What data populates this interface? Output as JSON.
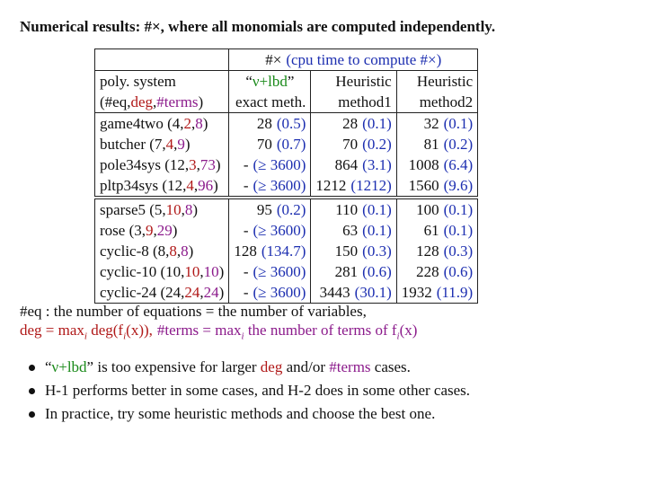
{
  "title": "Numerical results: #×, where all monomials are computed independently.",
  "table": {
    "header_top": [
      "#×",
      "(cpu time to compute #×)"
    ],
    "header": [
      [
        "poly. system",
        [
          "“",
          "ν+lbd",
          "”"
        ],
        "Heuristic",
        "Heuristic"
      ],
      [
        [
          "(#eq,",
          "deg",
          ",",
          "#terms",
          ")"
        ],
        "exact meth.",
        "method1",
        "method2"
      ]
    ],
    "groups": [
      [
        {
          "label": [
            "game4two (4,",
            "2",
            ",",
            "8",
            ")"
          ],
          "cells": [
            [
              "28",
              "(0.5)"
            ],
            [
              "28",
              "(0.1)"
            ],
            [
              "32",
              "(0.1)"
            ]
          ]
        },
        {
          "label": [
            "butcher (7,",
            "4",
            ",",
            "9",
            ")"
          ],
          "cells": [
            [
              "70",
              "(0.7)"
            ],
            [
              "70",
              "(0.2)"
            ],
            [
              "81",
              "(0.2)"
            ]
          ]
        },
        {
          "label": [
            "pole34sys (12,",
            "3",
            ",",
            "73",
            ")"
          ],
          "cells": [
            [
              "-",
              "(≥ 3600)"
            ],
            [
              "864",
              "(3.1)"
            ],
            [
              "1008",
              "(6.4)"
            ]
          ]
        },
        {
          "label": [
            "pltp34sys (12,",
            "4",
            ",",
            "96",
            ")"
          ],
          "cells": [
            [
              "-",
              "(≥ 3600)"
            ],
            [
              "1212",
              "(1212)"
            ],
            [
              "1560",
              "(9.6)"
            ]
          ]
        }
      ],
      [
        {
          "label": [
            "sparse5 (5,",
            "10",
            ",",
            "8",
            ")"
          ],
          "cells": [
            [
              "95",
              "(0.2)"
            ],
            [
              "110",
              "(0.1)"
            ],
            [
              "100",
              "(0.1)"
            ]
          ]
        },
        {
          "label": [
            "rose (3,",
            "9",
            ",",
            "29",
            ")"
          ],
          "cells": [
            [
              "-",
              "(≥ 3600)"
            ],
            [
              "63",
              "(0.1)"
            ],
            [
              "61",
              "(0.1)"
            ]
          ]
        },
        {
          "label": [
            "cyclic-8 (8,",
            "8",
            ",",
            "8",
            ")"
          ],
          "cells": [
            [
              "128",
              "(134.7)"
            ],
            [
              "150",
              "(0.3)"
            ],
            [
              "128",
              "(0.3)"
            ]
          ]
        },
        {
          "label": [
            "cyclic-10 (10,",
            "10",
            ",",
            "10",
            ")"
          ],
          "cells": [
            [
              "-",
              "(≥ 3600)"
            ],
            [
              "281",
              "(0.6)"
            ],
            [
              "228",
              "(0.6)"
            ]
          ]
        },
        {
          "label": [
            "cyclic-24 (24,",
            "24",
            ",",
            "24",
            ")"
          ],
          "cells": [
            [
              "-",
              "(≥ 3600)"
            ],
            [
              "3443",
              "(30.1)"
            ],
            [
              "1932",
              "(11.9)"
            ]
          ]
        }
      ]
    ]
  },
  "notes": {
    "line1": "#eq : the number of equations = the number of variables,",
    "deg": [
      "deg = max",
      "i",
      " deg(f",
      "i",
      "(x)),"
    ],
    "terms": [
      "#terms = max",
      "i",
      " the number of terms of f",
      "i",
      "(x)"
    ]
  },
  "bullets": [
    [
      "“",
      "ν+lbd",
      "” is too expensive for larger ",
      "deg",
      " and/or ",
      "#terms",
      " cases."
    ],
    [
      "H-1 performs better in some cases, and H-2 does in some other cases."
    ],
    [
      "In practice, try some heuristic methods and choose the best one."
    ]
  ]
}
